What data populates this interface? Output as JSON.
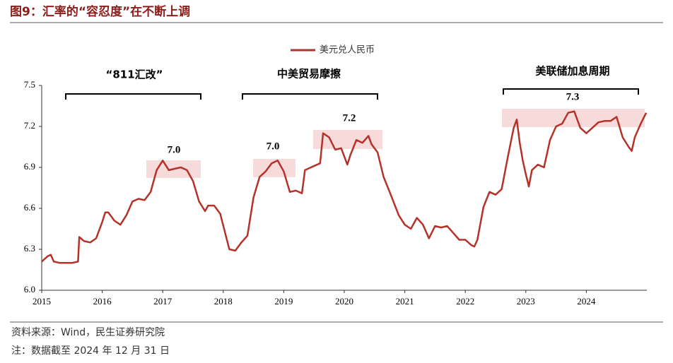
{
  "chart_data": {
    "type": "line",
    "title": "图9：汇率的“容忍度”在不断上调",
    "xlim": [
      2015,
      2025
    ],
    "xticks": [
      2015,
      2016,
      2017,
      2018,
      2019,
      2020,
      2021,
      2022,
      2023,
      2024
    ],
    "ylim": [
      6.0,
      7.5
    ],
    "yticks": [
      {
        "value": 6.0,
        "label": "6.0"
      },
      6.3,
      6.6,
      6.9,
      7.2,
      7.5
    ],
    "legend": "top",
    "series": [
      {
        "name": "美元兑人民币",
        "color": "#b5322a",
        "x": [
          2015.0,
          2015.05,
          2015.1,
          2015.15,
          2015.2,
          2015.3,
          2015.5,
          2015.6,
          2015.62,
          2015.7,
          2015.8,
          2015.9,
          2016.0,
          2016.05,
          2016.1,
          2016.2,
          2016.3,
          2016.4,
          2016.5,
          2016.6,
          2016.7,
          2016.8,
          2016.9,
          2017.0,
          2017.1,
          2017.2,
          2017.3,
          2017.4,
          2017.5,
          2017.6,
          2017.7,
          2017.75,
          2017.85,
          2017.95,
          2018.1,
          2018.2,
          2018.3,
          2018.4,
          2018.5,
          2018.6,
          2018.7,
          2018.8,
          2018.9,
          2019.0,
          2019.1,
          2019.2,
          2019.3,
          2019.35,
          2019.45,
          2019.6,
          2019.65,
          2019.75,
          2019.85,
          2019.95,
          2020.05,
          2020.1,
          2020.2,
          2020.3,
          2020.4,
          2020.45,
          2020.55,
          2020.65,
          2020.75,
          2020.9,
          2021.0,
          2021.1,
          2021.2,
          2021.3,
          2021.4,
          2021.5,
          2021.6,
          2021.7,
          2021.8,
          2021.9,
          2022.0,
          2022.1,
          2022.15,
          2022.2,
          2022.3,
          2022.4,
          2022.5,
          2022.6,
          2022.7,
          2022.8,
          2022.85,
          2022.9,
          2022.95,
          2023.0,
          2023.05,
          2023.1,
          2023.2,
          2023.3,
          2023.4,
          2023.5,
          2023.6,
          2023.7,
          2023.8,
          2023.9,
          2024.0,
          2024.1,
          2024.2,
          2024.3,
          2024.4,
          2024.5,
          2024.6,
          2024.7,
          2024.75,
          2024.8,
          2024.9,
          2024.99
        ],
        "values": [
          6.21,
          6.23,
          6.25,
          6.26,
          6.21,
          6.2,
          6.2,
          6.21,
          6.39,
          6.36,
          6.35,
          6.38,
          6.5,
          6.57,
          6.57,
          6.51,
          6.48,
          6.55,
          6.65,
          6.67,
          6.66,
          6.72,
          6.88,
          6.95,
          6.88,
          6.89,
          6.9,
          6.88,
          6.8,
          6.65,
          6.58,
          6.62,
          6.62,
          6.56,
          6.3,
          6.29,
          6.35,
          6.4,
          6.68,
          6.83,
          6.87,
          6.93,
          6.95,
          6.87,
          6.72,
          6.73,
          6.71,
          6.88,
          6.9,
          6.93,
          7.15,
          7.12,
          7.03,
          7.04,
          6.92,
          6.99,
          7.1,
          7.08,
          7.13,
          7.07,
          7.01,
          6.83,
          6.72,
          6.55,
          6.48,
          6.45,
          6.53,
          6.48,
          6.38,
          6.47,
          6.46,
          6.47,
          6.42,
          6.37,
          6.37,
          6.33,
          6.32,
          6.37,
          6.61,
          6.72,
          6.7,
          6.74,
          6.97,
          7.19,
          7.25,
          7.08,
          6.95,
          6.85,
          6.76,
          6.88,
          6.92,
          6.9,
          7.1,
          7.2,
          7.22,
          7.3,
          7.31,
          7.19,
          7.15,
          7.19,
          7.23,
          7.24,
          7.24,
          7.27,
          7.12,
          7.05,
          7.02,
          7.12,
          7.22,
          7.3
        ]
      }
    ],
    "annotations": [
      {
        "text": "“811汇改”"
      },
      {
        "text": "中美贸易摩擦"
      },
      {
        "text": "美联储加息周期"
      }
    ],
    "highlights": [
      {
        "text": "7.0"
      },
      {
        "text": "7.0"
      },
      {
        "text": "7.2"
      },
      {
        "text": "7.3"
      }
    ],
    "source": "资料来源：Wind，民生证券研究院",
    "note": "注：数据截至 2024 年 12 月 31 日"
  }
}
